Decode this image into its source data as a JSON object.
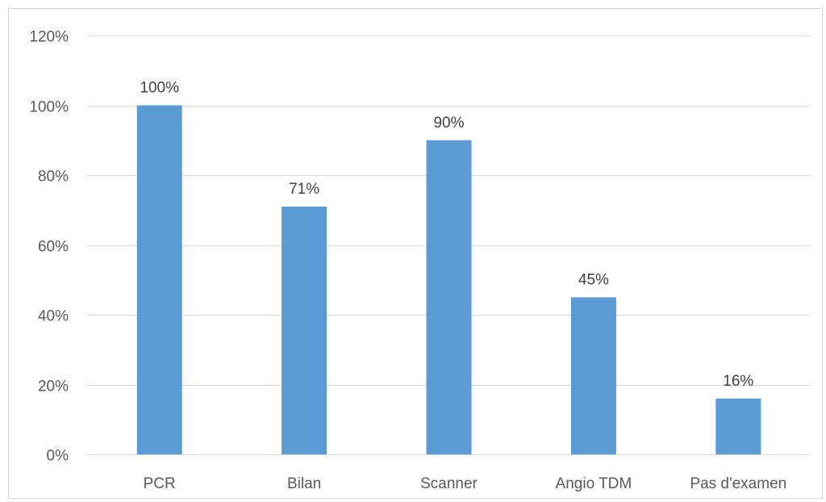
{
  "chart_data": {
    "type": "bar",
    "categories": [
      "PCR",
      "Bilan",
      "Scanner",
      "Angio TDM",
      "Pas d'examen"
    ],
    "values": [
      100,
      71,
      90,
      45,
      16
    ],
    "data_labels": [
      "100%",
      "71%",
      "90%",
      "45%",
      "16%"
    ],
    "ylim": [
      0,
      120
    ],
    "yticks": [
      0,
      20,
      40,
      60,
      80,
      100,
      120
    ],
    "ytick_labels": [
      "0%",
      "20%",
      "40%",
      "60%",
      "80%",
      "100%",
      "120%"
    ],
    "grid": true,
    "legend": "none",
    "bar_color": "#5b9bd5",
    "grid_color": "#d9d9d9"
  }
}
